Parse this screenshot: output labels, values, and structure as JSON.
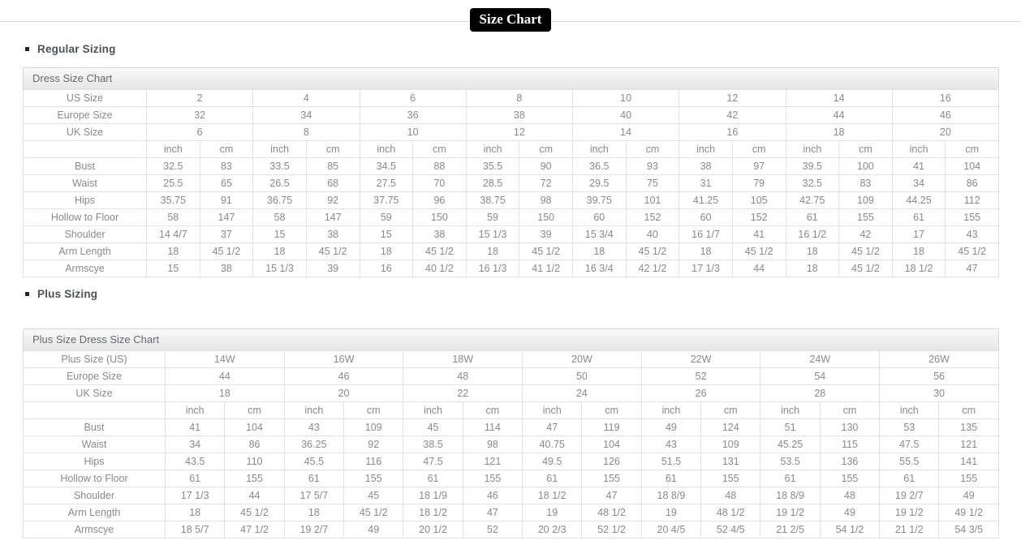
{
  "page": {
    "title": "Size Chart"
  },
  "units": [
    "inch",
    "cm"
  ],
  "sections": [
    {
      "heading": "Regular Sizing",
      "table": {
        "caption": "Dress Size Chart",
        "size_rows": [
          {
            "label": "US Size",
            "values": [
              "2",
              "4",
              "6",
              "8",
              "10",
              "12",
              "14",
              "16"
            ]
          },
          {
            "label": "Europe Size",
            "values": [
              "32",
              "34",
              "36",
              "38",
              "40",
              "42",
              "44",
              "46"
            ]
          },
          {
            "label": "UK Size",
            "values": [
              "6",
              "8",
              "10",
              "12",
              "14",
              "16",
              "18",
              "20"
            ]
          }
        ],
        "measure_rows": [
          {
            "label": "Bust",
            "values": [
              "32.5",
              "83",
              "33.5",
              "85",
              "34.5",
              "88",
              "35.5",
              "90",
              "36.5",
              "93",
              "38",
              "97",
              "39.5",
              "100",
              "41",
              "104"
            ]
          },
          {
            "label": "Waist",
            "values": [
              "25.5",
              "65",
              "26.5",
              "68",
              "27.5",
              "70",
              "28.5",
              "72",
              "29.5",
              "75",
              "31",
              "79",
              "32.5",
              "83",
              "34",
              "86"
            ]
          },
          {
            "label": "Hips",
            "values": [
              "35.75",
              "91",
              "36.75",
              "92",
              "37.75",
              "96",
              "38.75",
              "98",
              "39.75",
              "101",
              "41.25",
              "105",
              "42.75",
              "109",
              "44.25",
              "112"
            ]
          },
          {
            "label": "Hollow to Floor",
            "values": [
              "58",
              "147",
              "58",
              "147",
              "59",
              "150",
              "59",
              "150",
              "60",
              "152",
              "60",
              "152",
              "61",
              "155",
              "61",
              "155"
            ]
          },
          {
            "label": "Shoulder",
            "values": [
              "14 4/7",
              "37",
              "15",
              "38",
              "15",
              "38",
              "15 1/3",
              "39",
              "15 3/4",
              "40",
              "16 1/7",
              "41",
              "16 1/2",
              "42",
              "17",
              "43"
            ]
          },
          {
            "label": "Arm Length",
            "values": [
              "18",
              "45 1/2",
              "18",
              "45 1/2",
              "18",
              "45 1/2",
              "18",
              "45 1/2",
              "18",
              "45 1/2",
              "18",
              "45 1/2",
              "18",
              "45 1/2",
              "18",
              "45 1/2"
            ]
          },
          {
            "label": "Armscye",
            "values": [
              "15",
              "38",
              "15 1/3",
              "39",
              "16",
              "40 1/2",
              "16 1/3",
              "41 1/2",
              "16 3/4",
              "42 1/2",
              "17 1/3",
              "44",
              "18",
              "45 1/2",
              "18 1/2",
              "47"
            ]
          }
        ]
      }
    },
    {
      "heading": "Plus Sizing",
      "table": {
        "caption": "Plus Size Dress Size Chart",
        "size_rows": [
          {
            "label": "Plus Size (US)",
            "values": [
              "14W",
              "16W",
              "18W",
              "20W",
              "22W",
              "24W",
              "26W"
            ]
          },
          {
            "label": "Europe Size",
            "values": [
              "44",
              "46",
              "48",
              "50",
              "52",
              "54",
              "56"
            ]
          },
          {
            "label": "UK Size",
            "values": [
              "18",
              "20",
              "22",
              "24",
              "26",
              "28",
              "30"
            ]
          }
        ],
        "measure_rows": [
          {
            "label": "Bust",
            "values": [
              "41",
              "104",
              "43",
              "109",
              "45",
              "114",
              "47",
              "119",
              "49",
              "124",
              "51",
              "130",
              "53",
              "135"
            ]
          },
          {
            "label": "Waist",
            "values": [
              "34",
              "86",
              "36.25",
              "92",
              "38.5",
              "98",
              "40.75",
              "104",
              "43",
              "109",
              "45.25",
              "115",
              "47.5",
              "121"
            ]
          },
          {
            "label": "Hips",
            "values": [
              "43.5",
              "110",
              "45.5",
              "116",
              "47.5",
              "121",
              "49.5",
              "126",
              "51.5",
              "131",
              "53.5",
              "136",
              "55.5",
              "141"
            ]
          },
          {
            "label": "Hollow to Floor",
            "values": [
              "61",
              "155",
              "61",
              "155",
              "61",
              "155",
              "61",
              "155",
              "61",
              "155",
              "61",
              "155",
              "61",
              "155"
            ]
          },
          {
            "label": "Shoulder",
            "values": [
              "17 1/3",
              "44",
              "17 5/7",
              "45",
              "18 1/9",
              "46",
              "18 1/2",
              "47",
              "18 8/9",
              "48",
              "18 8/9",
              "48",
              "19 2/7",
              "49"
            ]
          },
          {
            "label": "Arm Length",
            "values": [
              "18",
              "45 1/2",
              "18",
              "45 1/2",
              "18 1/2",
              "47",
              "19",
              "48 1/2",
              "19",
              "48 1/2",
              "19 1/2",
              "49",
              "19 1/2",
              "49 1/2"
            ]
          },
          {
            "label": "Armscye",
            "values": [
              "18 5/7",
              "47 1/2",
              "19 2/7",
              "49",
              "20 1/2",
              "52",
              "20 2/3",
              "52 1/2",
              "20 4/5",
              "52 4/5",
              "21 2/5",
              "54 1/2",
              "21 1/2",
              "54 3/5"
            ]
          }
        ]
      }
    }
  ],
  "colors": {
    "badge_bg": "#000000",
    "badge_text": "#ffffff",
    "heading_text": "#4d5156",
    "caption_text": "#666a6e",
    "cell_text": "#8a8a8a",
    "border": "#e2e2e2"
  }
}
